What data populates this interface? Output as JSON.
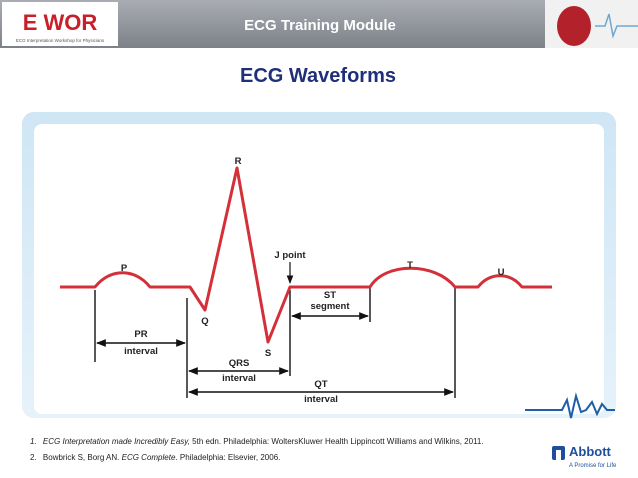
{
  "header": {
    "logo_text": "E WOR",
    "logo_subtitle": "ECG Interpretation Workshop for Physicians",
    "title": "ECG Training Module"
  },
  "slide_title": "ECG Waveforms",
  "diagram": {
    "labels": {
      "P": "P",
      "Q": "Q",
      "R": "R",
      "S": "S",
      "T": "T",
      "U": "U",
      "j_point": "J point",
      "st_1": "ST",
      "st_2": "segment",
      "pr_1": "PR",
      "pr_2": "interval",
      "qrs_1": "QRS",
      "qrs_2": "interval",
      "qt_1": "QT",
      "qt_2": "interval"
    }
  },
  "references": [
    {
      "number": "1.",
      "italic": "ECG Interpretation made Incredibly Easy,",
      "text": " 5th edn. Philadelphia: WoltersKluwer Health Lippincott Williams and Wilkins, 2011."
    },
    {
      "number": "2.",
      "text": "Bowbrick S, Borg AN. ",
      "italic": "ECG Complete",
      "text_end": ". Philadelphia: Elsevier, 2006."
    }
  ],
  "footer": {
    "brand": "Abbott",
    "tagline": "A Promise for Life"
  }
}
